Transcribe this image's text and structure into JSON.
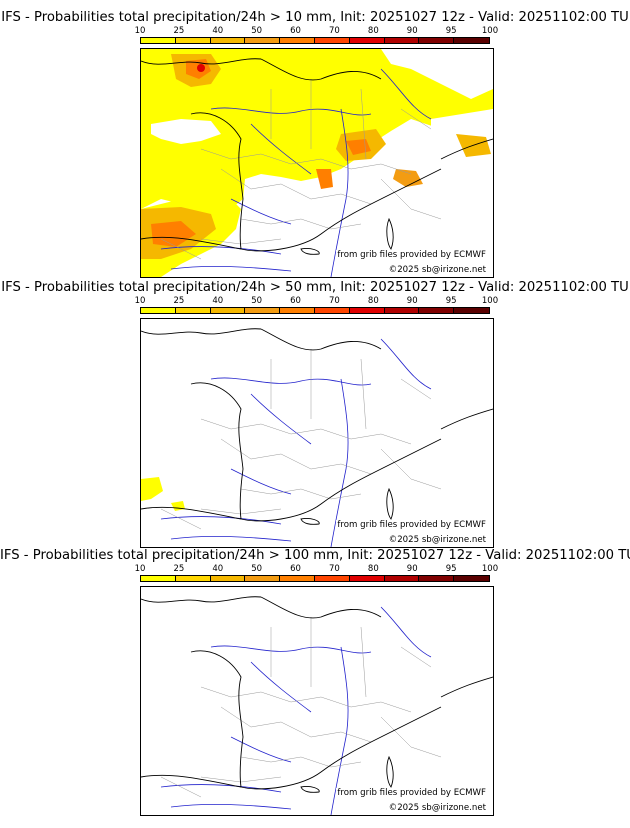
{
  "panels": [
    {
      "title": "IFS - Probabilities total precipitation/24h > 10 mm, Init: 20251027 12z - Valid: 20251102:00 TU",
      "threshold_mm": 10
    },
    {
      "title": "IFS - Probabilities total precipitation/24h > 50 mm, Init: 20251027 12z - Valid: 20251102:00 TU",
      "threshold_mm": 50
    },
    {
      "title": "IFS - Probabilities total precipitation/24h > 100 mm, Init: 20251027 12z - Valid: 20251102:00 TU",
      "threshold_mm": 100
    }
  ],
  "colorbar": {
    "ticks": [
      "10",
      "25",
      "40",
      "50",
      "60",
      "70",
      "80",
      "90",
      "95",
      "100"
    ],
    "colors": [
      "#ffff00",
      "#ffd700",
      "#f5b800",
      "#f39c12",
      "#ff7f00",
      "#ff4500",
      "#e00000",
      "#b00000",
      "#800000",
      "#5a0000"
    ]
  },
  "credits": {
    "source": "from grib files provided by ECMWF",
    "copyright": "©2025 sb@irizone.net"
  },
  "colors": {
    "coast": "#000000",
    "rivers": "#2222cc",
    "borders": "#999999"
  }
}
